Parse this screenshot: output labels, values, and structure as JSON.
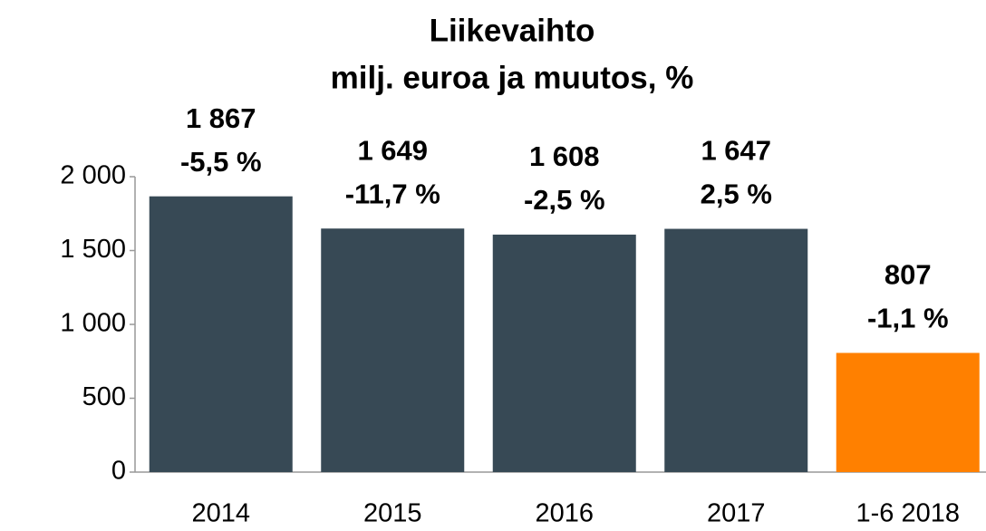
{
  "chart_data": {
    "type": "bar",
    "title": [
      "Liikevaihto",
      "milj. euroa ja muutos, %"
    ],
    "categories": [
      "2014",
      "2015",
      "2016",
      "2017",
      "1-6 2018"
    ],
    "values": [
      1867,
      1649,
      1608,
      1647,
      807
    ],
    "value_labels": [
      "1 867",
      "1 649",
      "1 608",
      "1 647",
      "807"
    ],
    "changes": [
      "-5,5 %",
      "-11,7 %",
      "-2,5 %",
      "2,5 %",
      "-1,1 %"
    ],
    "colors": [
      "#374955",
      "#374955",
      "#374955",
      "#374955",
      "#ff8000"
    ],
    "ylim": [
      0,
      2000
    ],
    "yticks": [
      0,
      500,
      {
        "value": 1000,
        "label": "1 000"
      },
      {
        "value": 1500,
        "label": "1 500"
      },
      {
        "value": 2000,
        "label": "2 000"
      }
    ],
    "grid": false
  }
}
